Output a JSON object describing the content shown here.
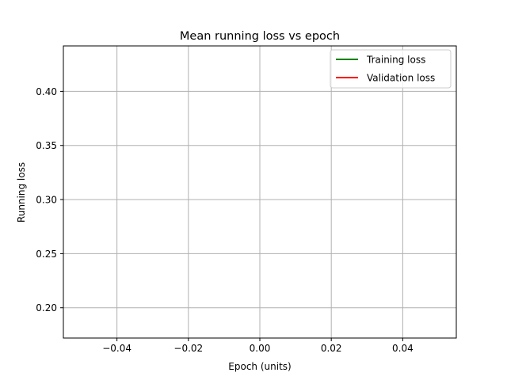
{
  "chart_data": {
    "type": "line",
    "title": "Mean running loss vs epoch",
    "xlabel": "Epoch (units)",
    "ylabel": "Running loss",
    "xlim": [
      -0.055,
      0.055
    ],
    "ylim": [
      0.172,
      0.442
    ],
    "xticks": [
      -0.04,
      -0.02,
      0.0,
      0.02,
      0.04
    ],
    "xtick_labels": [
      "−0.04",
      "−0.02",
      "0.00",
      "0.02",
      "0.04"
    ],
    "yticks": [
      0.2,
      0.25,
      0.3,
      0.35,
      0.4
    ],
    "ytick_labels": [
      "0.20",
      "0.25",
      "0.30",
      "0.35",
      "0.40"
    ],
    "grid": true,
    "legend_position": "upper right",
    "series": [
      {
        "name": "Training loss",
        "color": "#008000",
        "x": [],
        "y": []
      },
      {
        "name": "Validation loss",
        "color": "#ff0000",
        "x": [],
        "y": []
      }
    ]
  }
}
